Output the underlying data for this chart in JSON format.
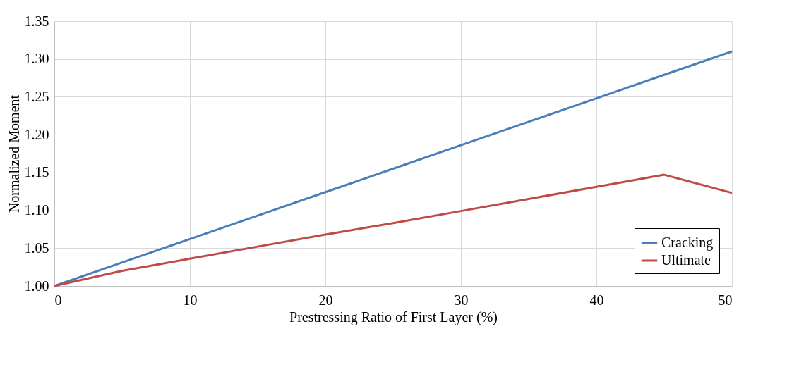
{
  "chart_data": {
    "type": "line",
    "xlabel": "Prestressing Ratio of First Layer (%)",
    "ylabel": "Normalized Moment",
    "x": [
      0,
      5,
      10,
      15,
      20,
      25,
      30,
      35,
      40,
      45,
      50
    ],
    "series": [
      {
        "name": "Cracking",
        "color": "#4a7ebb",
        "values": [
          1.0,
          1.031,
          1.062,
          1.093,
          1.124,
          1.155,
          1.186,
          1.217,
          1.248,
          1.279,
          1.31
        ]
      },
      {
        "name": "Ultimate",
        "color": "#be4b48",
        "values": [
          1.0,
          1.02,
          1.036,
          1.052,
          1.068,
          1.083,
          1.099,
          1.115,
          1.131,
          1.147,
          1.123
        ]
      }
    ],
    "xlim": [
      0,
      50
    ],
    "xticks": [
      0,
      10,
      20,
      30,
      40,
      50
    ],
    "ylim": [
      1.0,
      1.35
    ],
    "yticks": [
      {
        "value": 1.0,
        "label": "1.00"
      },
      {
        "value": 1.05,
        "label": "1.05"
      },
      {
        "value": 1.1,
        "label": "1.10"
      },
      {
        "value": 1.15,
        "label": "1.15"
      },
      {
        "value": 1.2,
        "label": "1.20"
      },
      {
        "value": 1.25,
        "label": "1.25"
      },
      {
        "value": 1.3,
        "label": "1.30"
      },
      {
        "value": 1.35,
        "label": "1.35"
      }
    ],
    "grid": true,
    "legend": "bottom right",
    "marker": "none",
    "line_style": "solid"
  }
}
